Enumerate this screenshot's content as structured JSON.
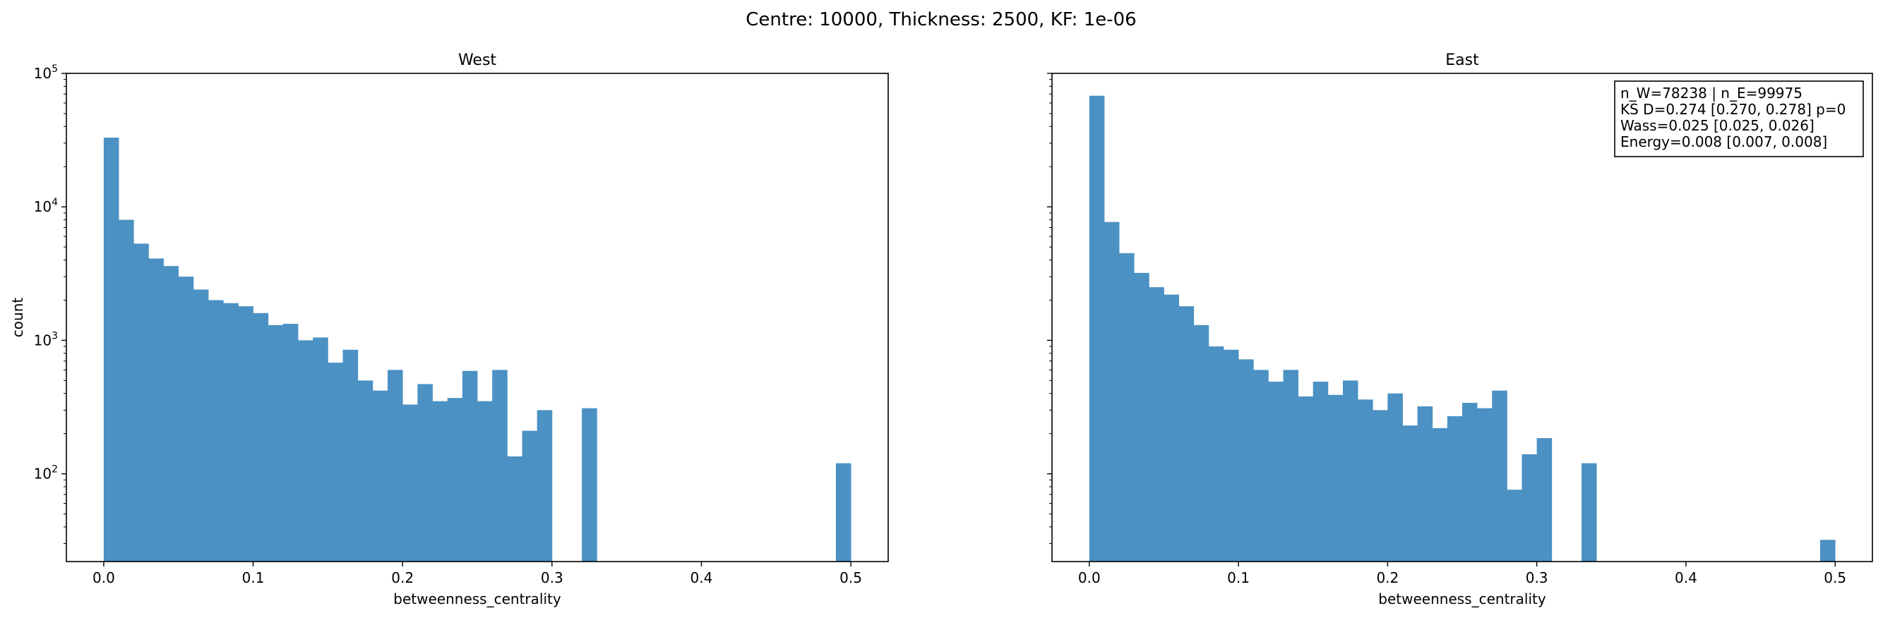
{
  "figure": {
    "suptitle": "Centre: 10000, Thickness: 2500, KF: 1e-06"
  },
  "style": {
    "bar_color": "#4b91c3",
    "axes_color": "#000000"
  },
  "chart_data": [
    {
      "type": "bar",
      "title": "West",
      "xlabel": "betweenness_centrality",
      "ylabel": "count",
      "yscale": "log",
      "xlim": [
        -0.025,
        0.525
      ],
      "ylim": [
        22,
        100000
      ],
      "xticks": [
        0.0,
        0.1,
        0.2,
        0.3,
        0.4,
        0.5
      ],
      "xtick_labels": [
        "0.0",
        "0.1",
        "0.2",
        "0.3",
        "0.4",
        "0.5"
      ],
      "ytick_values": [
        100,
        1000,
        10000,
        100000
      ],
      "ytick_labels": [
        [
          "10",
          "2"
        ],
        [
          "10",
          "3"
        ],
        [
          "10",
          "4"
        ],
        [
          "10",
          "5"
        ]
      ],
      "bin_start": 0.0,
      "bin_width": 0.01,
      "values": [
        33000,
        8000,
        5300,
        4100,
        3600,
        3000,
        2400,
        2000,
        1900,
        1800,
        1600,
        1300,
        1330,
        1000,
        1050,
        680,
        850,
        500,
        420,
        600,
        330,
        470,
        350,
        370,
        590,
        350,
        600,
        135,
        210,
        300,
        0,
        0,
        310,
        0,
        0,
        0,
        0,
        0,
        0,
        0,
        0,
        0,
        0,
        0,
        0,
        0,
        0,
        0,
        0,
        120
      ]
    },
    {
      "type": "bar",
      "title": "East",
      "xlabel": "betweenness_centrality",
      "ylabel": "",
      "yscale": "log",
      "xlim": [
        -0.025,
        0.525
      ],
      "ylim": [
        22,
        100000
      ],
      "xticks": [
        0.0,
        0.1,
        0.2,
        0.3,
        0.4,
        0.5
      ],
      "xtick_labels": [
        "0.0",
        "0.1",
        "0.2",
        "0.3",
        "0.4",
        "0.5"
      ],
      "ytick_values": [
        100,
        1000,
        10000,
        100000
      ],
      "ytick_labels": [],
      "bin_start": 0.0,
      "bin_width": 0.01,
      "values": [
        68000,
        7700,
        4500,
        3200,
        2500,
        2200,
        1800,
        1300,
        900,
        850,
        720,
        600,
        490,
        600,
        380,
        490,
        390,
        500,
        360,
        300,
        400,
        230,
        320,
        220,
        270,
        340,
        310,
        420,
        76,
        140,
        185,
        0,
        0,
        120,
        0,
        0,
        0,
        0,
        0,
        0,
        0,
        0,
        0,
        0,
        0,
        0,
        0,
        0,
        0,
        32
      ],
      "annotation": [
        "n_W=78238 | n_E=99975",
        "KS D=0.274 [0.270, 0.278]  p=0",
        "Wass=0.025 [0.025, 0.026]",
        "Energy=0.008 [0.007, 0.008]"
      ]
    }
  ]
}
